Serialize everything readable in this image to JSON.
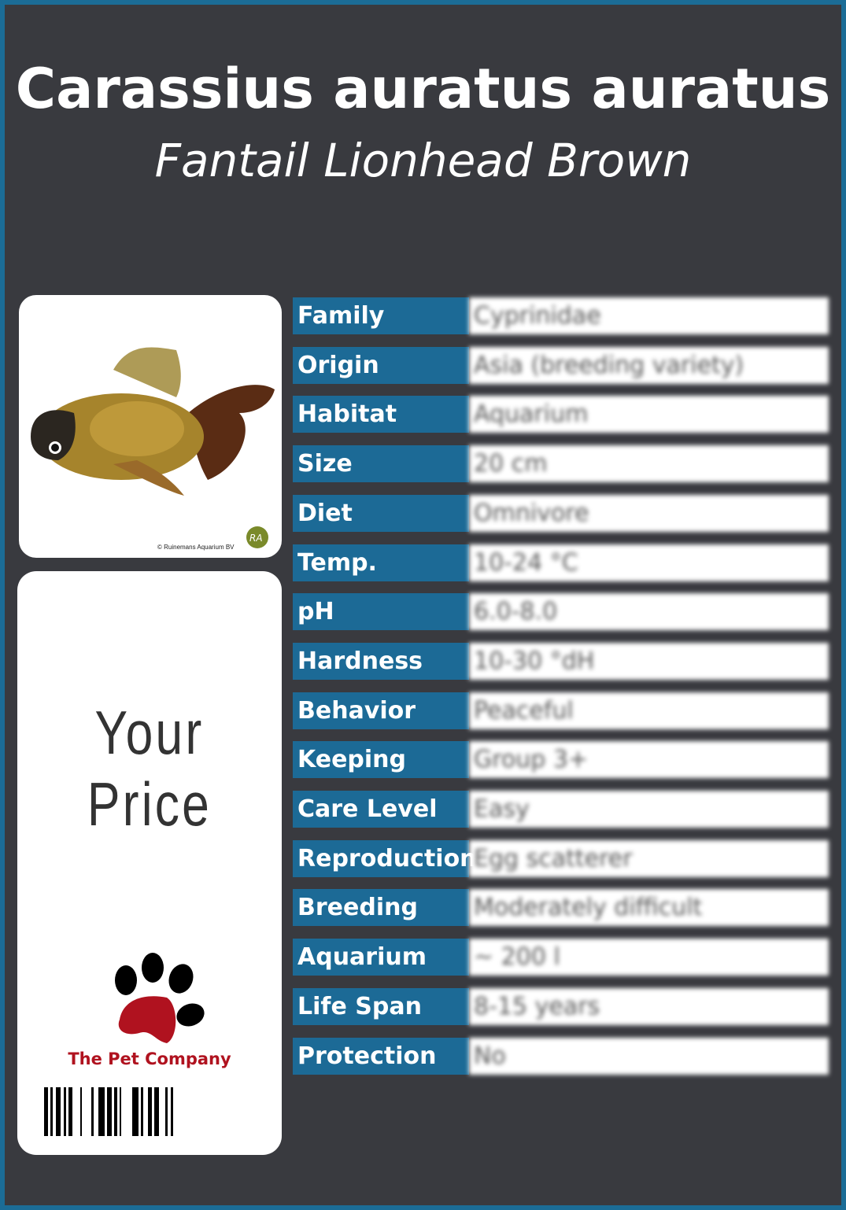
{
  "header": {
    "title": "Carassius auratus auratus",
    "subtitle": "Fantail Lionhead Brown"
  },
  "image": {
    "credit": "© Ruinemans Aquarium BV",
    "logo_text": "RA"
  },
  "price": {
    "label": "Your Price"
  },
  "brand": {
    "name": "The Pet Company"
  },
  "colors": {
    "background": "#393a3f",
    "border": "#1b6c96",
    "label_bg": "#1c6a96",
    "brand_red": "#b0121f"
  },
  "facts": [
    {
      "label": "Family",
      "value": "Cyprinidae"
    },
    {
      "label": "Origin",
      "value": "Asia (breeding variety)"
    },
    {
      "label": "Habitat",
      "value": "Aquarium"
    },
    {
      "label": "Size",
      "value": "20 cm"
    },
    {
      "label": "Diet",
      "value": "Omnivore"
    },
    {
      "label": "Temp.",
      "value": "10-24 °C"
    },
    {
      "label": "pH",
      "value": "6.0-8.0"
    },
    {
      "label": "Hardness",
      "value": "10-30 °dH"
    },
    {
      "label": "Behavior",
      "value": "Peaceful"
    },
    {
      "label": "Keeping",
      "value": "Group 3+"
    },
    {
      "label": "Care Level",
      "value": "Easy"
    },
    {
      "label": "Reproduction",
      "value": "Egg scatterer"
    },
    {
      "label": "Breeding",
      "value": "Moderately difficult"
    },
    {
      "label": "Aquarium",
      "value": "~ 200 l"
    },
    {
      "label": "Life Span",
      "value": "8-15 years"
    },
    {
      "label": "Protection",
      "value": "No"
    }
  ]
}
